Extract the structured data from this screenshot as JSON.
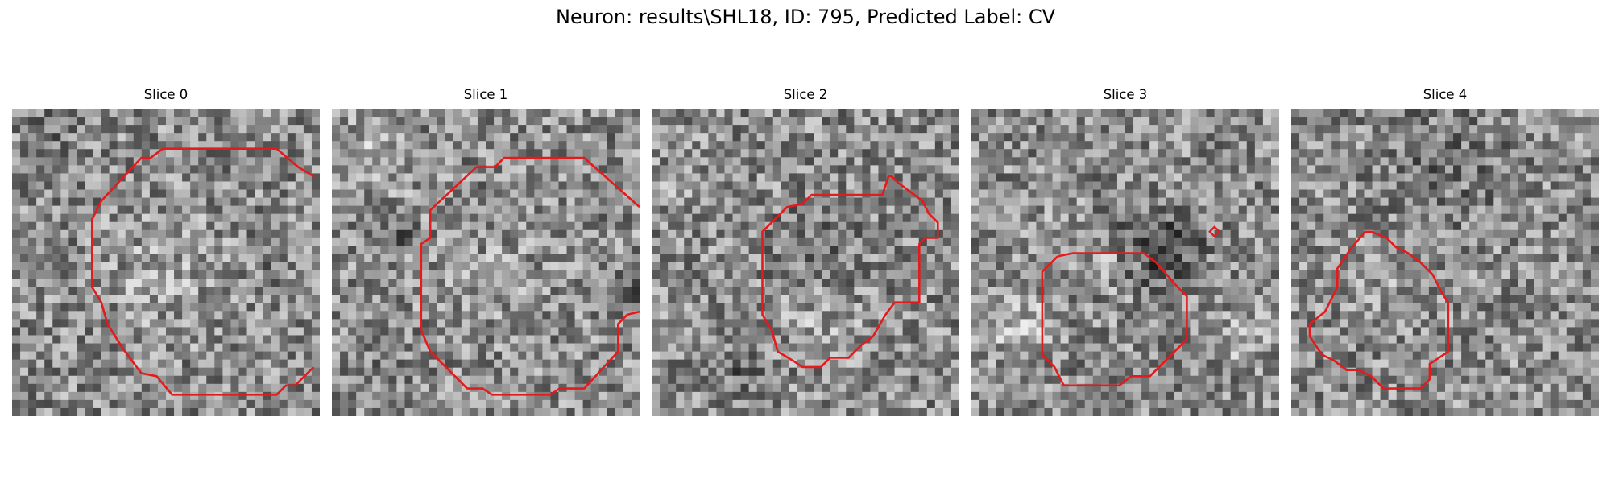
{
  "figure": {
    "title": "Neuron: results\\SHL18, ID: 795, Predicted Label: CV"
  },
  "panels": [
    {
      "title": "Slice 0",
      "image": "grayscale-microscopy-tile",
      "contour_color": "#e41a1c"
    },
    {
      "title": "Slice 1",
      "image": "grayscale-microscopy-tile",
      "contour_color": "#e41a1c"
    },
    {
      "title": "Slice 2",
      "image": "grayscale-microscopy-tile",
      "contour_color": "#e41a1c"
    },
    {
      "title": "Slice 3",
      "image": "grayscale-microscopy-tile",
      "contour_color": "#e41a1c"
    },
    {
      "title": "Slice 4",
      "image": "grayscale-microscopy-tile",
      "contour_color": "#e41a1c"
    }
  ]
}
